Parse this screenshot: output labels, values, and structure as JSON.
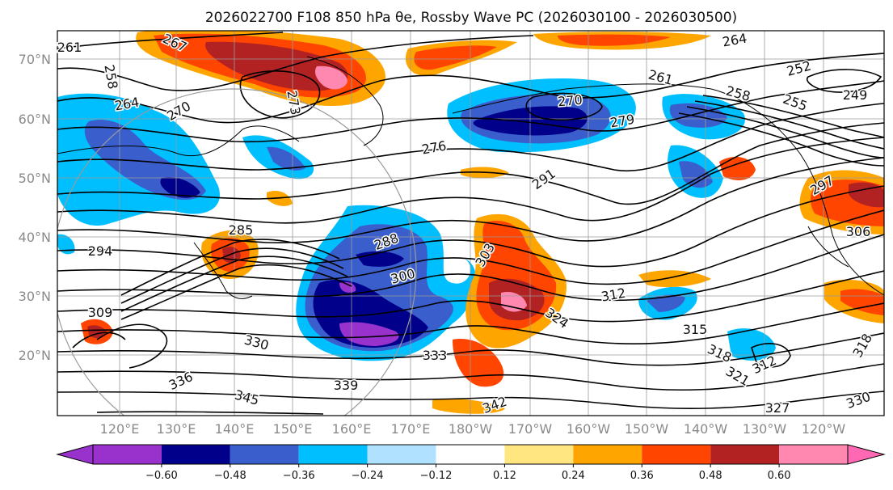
{
  "title": "2026022700 F108 850 hPa θe, Rossby Wave PC (2026030100 - 2026030500)",
  "latitude_labels": [
    "70°N",
    "60°N",
    "50°N",
    "40°N",
    "30°N",
    "20°N"
  ],
  "longitude_labels": [
    "120°E",
    "130°E",
    "140°E",
    "150°E",
    "160°E",
    "170°E",
    "180°W",
    "170°W",
    "160°W",
    "150°W",
    "140°W",
    "130°W",
    "120°W"
  ],
  "contour_labels": [
    "261",
    "258",
    "264",
    "267",
    "270",
    "273",
    "276",
    "270",
    "264",
    "261",
    "252",
    "258",
    "255",
    "249",
    "279",
    "291",
    "297",
    "294",
    "288",
    "285",
    "300",
    "303",
    "306",
    "309",
    "312",
    "312",
    "315",
    "318",
    "318",
    "321",
    "324",
    "327",
    "330",
    "333",
    "336",
    "339",
    "342",
    "345",
    "330"
  ],
  "colorbar": {
    "ticks": [
      "−0.60",
      "−0.48",
      "−0.36",
      "−0.24",
      "−0.12",
      "0.12",
      "0.24",
      "0.36",
      "0.48",
      "0.60"
    ],
    "colors": [
      "#9932cc",
      "#00008b",
      "#3a5fcd",
      "#00bfff",
      "#b0e2ff",
      "#ffffff",
      "#ffe680",
      "#ffa500",
      "#ff4500",
      "#b22222",
      "#ff88b0",
      "#ff69b4"
    ]
  },
  "anomalies": [
    {
      "sign": "positive",
      "value": 0.55,
      "region": "Okhotsk / Kamchatka"
    },
    {
      "sign": "positive",
      "value": 0.55,
      "region": "subtropical central Pacific 170W"
    },
    {
      "sign": "positive",
      "value": 0.4,
      "region": "Japan"
    },
    {
      "sign": "positive",
      "value": 0.4,
      "region": "Gulf of Alaska coast"
    },
    {
      "sign": "negative",
      "value": -0.55,
      "region": "west Pacific subtropics 160E"
    },
    {
      "sign": "negative",
      "value": -0.45,
      "region": "Bering Sea"
    },
    {
      "sign": "negative",
      "value": -0.3,
      "region": "northeast Pacific"
    }
  ]
}
